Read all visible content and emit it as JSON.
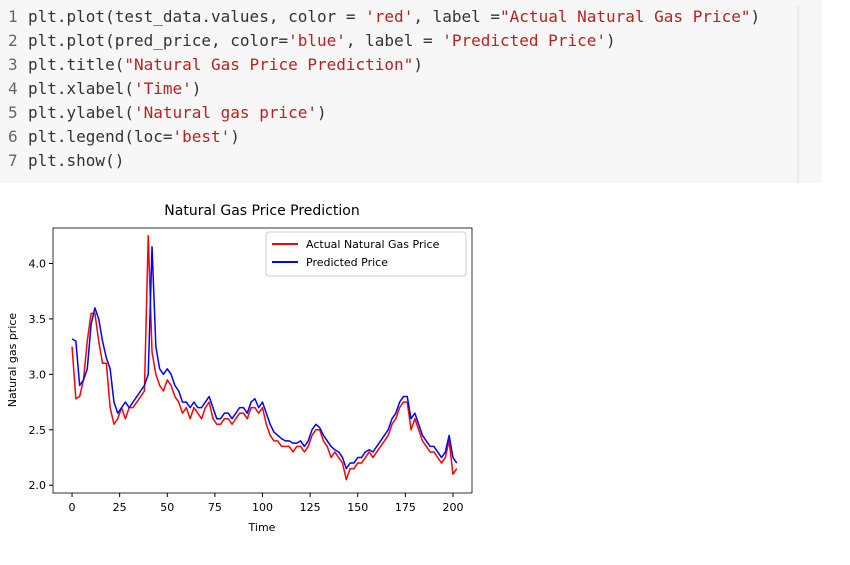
{
  "code": {
    "line_numbers": [
      1,
      2,
      3,
      4,
      5,
      6,
      7
    ],
    "lines": [
      [
        "plt.plot(test_data.values, color = ",
        "'red'",
        ", label =",
        "\"Actual Natural Gas Price\"",
        ")"
      ],
      [
        "plt.plot(pred_price, color=",
        "'blue'",
        ", label = ",
        "'Predicted Price'",
        ")"
      ],
      [
        "plt.title(",
        "\"Natural Gas Price Prediction\"",
        ")"
      ],
      [
        "plt.xlabel(",
        "'Time'",
        ")"
      ],
      [
        "plt.ylabel(",
        "'Natural gas price'",
        ")"
      ],
      [
        "plt.legend(loc=",
        "'best'",
        ")"
      ],
      [
        "plt.show()"
      ]
    ]
  },
  "chart_data": {
    "type": "line",
    "title": "Natural Gas Price Prediction",
    "x_label": "Time",
    "y_label": "Natural gas price",
    "x": [
      0,
      2,
      4,
      6,
      8,
      10,
      12,
      14,
      16,
      18,
      20,
      22,
      24,
      26,
      28,
      30,
      32,
      34,
      36,
      38,
      40,
      42,
      44,
      46,
      48,
      50,
      52,
      54,
      56,
      58,
      60,
      62,
      64,
      66,
      68,
      70,
      72,
      74,
      76,
      78,
      80,
      82,
      84,
      86,
      88,
      90,
      92,
      94,
      96,
      98,
      100,
      102,
      104,
      106,
      108,
      110,
      112,
      114,
      116,
      118,
      120,
      122,
      124,
      126,
      128,
      130,
      132,
      134,
      136,
      138,
      140,
      142,
      144,
      146,
      148,
      150,
      152,
      154,
      156,
      158,
      160,
      162,
      164,
      166,
      168,
      170,
      172,
      174,
      176,
      178,
      180,
      182,
      184,
      186,
      188,
      190,
      192,
      194,
      196,
      198,
      200,
      202
    ],
    "series": [
      {
        "name": "Actual Natural Gas Price",
        "color": "#ff0000",
        "values": [
          3.25,
          2.78,
          2.8,
          2.95,
          3.3,
          3.55,
          3.55,
          3.3,
          3.1,
          3.1,
          2.7,
          2.55,
          2.6,
          2.7,
          2.6,
          2.7,
          2.7,
          2.75,
          2.8,
          2.85,
          4.25,
          3.2,
          3.0,
          2.9,
          2.85,
          2.95,
          2.9,
          2.8,
          2.75,
          2.65,
          2.7,
          2.6,
          2.7,
          2.65,
          2.6,
          2.7,
          2.75,
          2.6,
          2.55,
          2.55,
          2.6,
          2.6,
          2.55,
          2.6,
          2.65,
          2.65,
          2.6,
          2.7,
          2.7,
          2.65,
          2.7,
          2.55,
          2.45,
          2.4,
          2.4,
          2.35,
          2.35,
          2.35,
          2.3,
          2.35,
          2.35,
          2.3,
          2.35,
          2.45,
          2.5,
          2.5,
          2.4,
          2.35,
          2.25,
          2.3,
          2.25,
          2.2,
          2.05,
          2.15,
          2.15,
          2.2,
          2.2,
          2.25,
          2.3,
          2.25,
          2.3,
          2.35,
          2.4,
          2.45,
          2.55,
          2.6,
          2.7,
          2.75,
          2.75,
          2.5,
          2.6,
          2.5,
          2.4,
          2.35,
          2.3,
          2.3,
          2.25,
          2.2,
          2.25,
          2.4,
          2.1,
          2.15
        ]
      },
      {
        "name": "Predicted Price",
        "color": "#0000ff",
        "values": [
          3.32,
          3.3,
          2.9,
          2.95,
          3.05,
          3.45,
          3.6,
          3.5,
          3.3,
          3.15,
          3.05,
          2.75,
          2.65,
          2.7,
          2.75,
          2.7,
          2.75,
          2.8,
          2.85,
          2.9,
          3.0,
          4.15,
          3.25,
          3.05,
          3.0,
          3.05,
          3.0,
          2.9,
          2.85,
          2.75,
          2.75,
          2.7,
          2.75,
          2.7,
          2.7,
          2.75,
          2.8,
          2.7,
          2.6,
          2.6,
          2.65,
          2.65,
          2.6,
          2.65,
          2.7,
          2.7,
          2.65,
          2.75,
          2.78,
          2.7,
          2.75,
          2.65,
          2.55,
          2.48,
          2.45,
          2.42,
          2.4,
          2.4,
          2.38,
          2.38,
          2.4,
          2.35,
          2.4,
          2.5,
          2.55,
          2.52,
          2.45,
          2.4,
          2.35,
          2.32,
          2.3,
          2.25,
          2.15,
          2.2,
          2.2,
          2.25,
          2.25,
          2.3,
          2.32,
          2.3,
          2.35,
          2.4,
          2.45,
          2.5,
          2.6,
          2.65,
          2.75,
          2.8,
          2.8,
          2.6,
          2.65,
          2.55,
          2.45,
          2.4,
          2.35,
          2.35,
          2.3,
          2.25,
          2.3,
          2.45,
          2.25,
          2.2
        ]
      }
    ],
    "xlim": [
      -10,
      210
    ],
    "ylim": [
      1.93,
      4.32
    ],
    "xticks": [
      0,
      25,
      50,
      75,
      100,
      125,
      150,
      175,
      200
    ],
    "yticks": [
      {
        "value": 2,
        "label": "2.0"
      },
      2.5,
      {
        "value": 3,
        "label": "3.0"
      },
      3.5,
      {
        "value": 4,
        "label": "4.0"
      }
    ],
    "legend": "upper right"
  }
}
